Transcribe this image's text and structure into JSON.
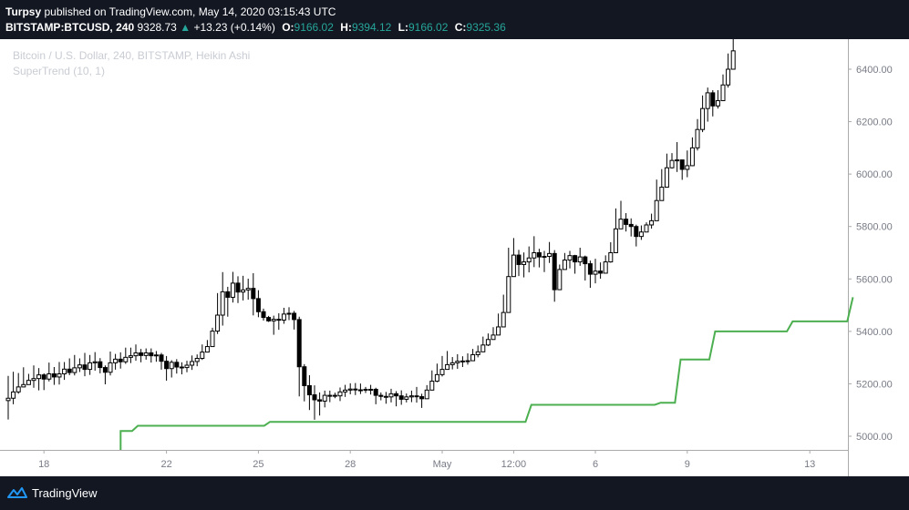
{
  "header": {
    "author": "Turpsy",
    "published_text": "published on TradingView.com, May 14, 2020 03:15:43 UTC",
    "symbol": "BITSTAMP:BTCUSD, 240",
    "last": "9328.73",
    "change": "+13.23 (+0.14%)",
    "o_label": "O:",
    "o_value": "9166.02",
    "h_label": "H:",
    "h_value": "9394.12",
    "l_label": "L:",
    "l_value": "9166.02",
    "c_label": "C:",
    "c_value": "9325.36"
  },
  "footer": {
    "brand": "TradingView"
  },
  "colors": {
    "background": "#131722",
    "candle_up": "#ffffff",
    "candle_down": "#000000",
    "supertrend": "#4caf50",
    "text_muted": "#787b86"
  },
  "chart_data": {
    "type": "candlestick",
    "title": "Bitcoin / U.S. Dollar, 240, BITSTAMP, Heikin Ashi",
    "indicator_label": "SuperTrend (10, 1)",
    "x_ticks": [
      {
        "label": "18",
        "i": 7
      },
      {
        "label": "22",
        "i": 31
      },
      {
        "label": "25",
        "i": 49
      },
      {
        "label": "28",
        "i": 67
      },
      {
        "label": "May",
        "i": 85
      },
      {
        "label": "12:00",
        "i": 99
      },
      {
        "label": "6",
        "i": 115
      },
      {
        "label": "9",
        "i": 133
      },
      {
        "label": "13",
        "i": 157
      }
    ],
    "y_ticks": [
      5000,
      5200,
      5400,
      5600,
      5800,
      6000,
      6200,
      6400
    ],
    "ylim": [
      4950,
      6550
    ],
    "candles": [
      [
        5136,
        5145,
        5230,
        5064
      ],
      [
        5145,
        5169,
        5246,
        5122
      ],
      [
        5169,
        5188,
        5241,
        5162
      ],
      [
        5188,
        5197,
        5263,
        5187
      ],
      [
        5197,
        5213,
        5238,
        5198
      ],
      [
        5213,
        5220,
        5270,
        5185
      ],
      [
        5220,
        5234,
        5260,
        5175
      ],
      [
        5234,
        5218,
        5240,
        5176
      ],
      [
        5218,
        5238,
        5281,
        5209
      ],
      [
        5238,
        5226,
        5264,
        5196
      ],
      [
        5226,
        5238,
        5283,
        5197
      ],
      [
        5238,
        5256,
        5283,
        5215
      ],
      [
        5256,
        5243,
        5297,
        5233
      ],
      [
        5243,
        5261,
        5310,
        5232
      ],
      [
        5261,
        5272,
        5297,
        5245
      ],
      [
        5272,
        5255,
        5318,
        5229
      ],
      [
        5255,
        5280,
        5310,
        5234
      ],
      [
        5280,
        5284,
        5321,
        5250
      ],
      [
        5284,
        5262,
        5298,
        5240
      ],
      [
        5262,
        5244,
        5270,
        5198
      ],
      [
        5244,
        5280,
        5323,
        5232
      ],
      [
        5280,
        5294,
        5314,
        5254
      ],
      [
        5294,
        5284,
        5320,
        5258
      ],
      [
        5284,
        5301,
        5338,
        5276
      ],
      [
        5301,
        5307,
        5338,
        5279
      ],
      [
        5307,
        5318,
        5350,
        5288
      ],
      [
        5318,
        5308,
        5333,
        5282
      ],
      [
        5308,
        5318,
        5335,
        5292
      ],
      [
        5318,
        5307,
        5335,
        5281
      ],
      [
        5307,
        5310,
        5325,
        5284
      ],
      [
        5310,
        5286,
        5318,
        5254
      ],
      [
        5286,
        5258,
        5306,
        5212
      ],
      [
        5258,
        5282,
        5290,
        5224
      ],
      [
        5282,
        5264,
        5294,
        5239
      ],
      [
        5264,
        5262,
        5282,
        5236
      ],
      [
        5262,
        5271,
        5288,
        5244
      ],
      [
        5271,
        5285,
        5308,
        5253
      ],
      [
        5285,
        5297,
        5312,
        5267
      ],
      [
        5297,
        5321,
        5350,
        5291
      ],
      [
        5321,
        5342,
        5367,
        5321
      ],
      [
        5342,
        5401,
        5414,
        5359
      ],
      [
        5401,
        5462,
        5546,
        5390
      ],
      [
        5462,
        5551,
        5626,
        5422
      ],
      [
        5551,
        5530,
        5570,
        5456
      ],
      [
        5530,
        5584,
        5627,
        5510
      ],
      [
        5584,
        5550,
        5610,
        5508
      ],
      [
        5550,
        5558,
        5612,
        5518
      ],
      [
        5558,
        5564,
        5601,
        5521
      ],
      [
        5564,
        5525,
        5622,
        5461
      ],
      [
        5525,
        5475,
        5557,
        5454
      ],
      [
        5475,
        5453,
        5487,
        5441
      ],
      [
        5453,
        5440,
        5459,
        5436
      ],
      [
        5440,
        5446,
        5460,
        5387
      ],
      [
        5446,
        5443,
        5469,
        5406
      ],
      [
        5443,
        5466,
        5490,
        5429
      ],
      [
        5466,
        5469,
        5492,
        5443
      ],
      [
        5469,
        5445,
        5478,
        5407
      ],
      [
        5445,
        5265,
        5456,
        5152
      ],
      [
        5265,
        5193,
        5275,
        5133
      ],
      [
        5193,
        5158,
        5233,
        5100
      ],
      [
        5158,
        5139,
        5194,
        5063
      ],
      [
        5139,
        5134,
        5167,
        5079
      ],
      [
        5134,
        5156,
        5174,
        5110
      ],
      [
        5156,
        5156,
        5174,
        5130
      ],
      [
        5156,
        5154,
        5166,
        5145
      ],
      [
        5154,
        5169,
        5186,
        5134
      ],
      [
        5169,
        5176,
        5196,
        5150
      ],
      [
        5176,
        5180,
        5202,
        5160
      ],
      [
        5180,
        5177,
        5203,
        5157
      ],
      [
        5177,
        5177,
        5201,
        5161
      ],
      [
        5177,
        5179,
        5188,
        5165
      ],
      [
        5179,
        5179,
        5196,
        5159
      ],
      [
        5179,
        5156,
        5185,
        5122
      ],
      [
        5156,
        5152,
        5167,
        5137
      ],
      [
        5152,
        5150,
        5169,
        5124
      ],
      [
        5150,
        5162,
        5181,
        5129
      ],
      [
        5162,
        5154,
        5172,
        5114
      ],
      [
        5154,
        5141,
        5175,
        5120
      ],
      [
        5141,
        5150,
        5163,
        5129
      ],
      [
        5150,
        5154,
        5174,
        5130
      ],
      [
        5154,
        5151,
        5188,
        5128
      ],
      [
        5151,
        5143,
        5162,
        5108
      ],
      [
        5143,
        5176,
        5195,
        5151
      ],
      [
        5176,
        5210,
        5251,
        5178
      ],
      [
        5210,
        5235,
        5277,
        5206
      ],
      [
        5235,
        5255,
        5306,
        5228
      ],
      [
        5255,
        5273,
        5325,
        5257
      ],
      [
        5273,
        5280,
        5302,
        5255
      ],
      [
        5280,
        5286,
        5313,
        5257
      ],
      [
        5286,
        5287,
        5305,
        5264
      ],
      [
        5287,
        5288,
        5316,
        5273
      ],
      [
        5288,
        5311,
        5333,
        5291
      ],
      [
        5311,
        5322,
        5346,
        5301
      ],
      [
        5322,
        5348,
        5380,
        5326
      ],
      [
        5348,
        5369,
        5392,
        5344
      ],
      [
        5369,
        5386,
        5416,
        5370
      ],
      [
        5386,
        5417,
        5468,
        5403
      ],
      [
        5417,
        5472,
        5540,
        5432
      ],
      [
        5472,
        5609,
        5719,
        5498
      ],
      [
        5609,
        5691,
        5756,
        5622
      ],
      [
        5691,
        5655,
        5711,
        5611
      ],
      [
        5655,
        5665,
        5701,
        5606
      ],
      [
        5665,
        5680,
        5724,
        5625
      ],
      [
        5680,
        5700,
        5763,
        5645
      ],
      [
        5700,
        5684,
        5715,
        5644
      ],
      [
        5684,
        5686,
        5707,
        5626
      ],
      [
        5686,
        5697,
        5741,
        5661
      ],
      [
        5697,
        5559,
        5710,
        5513
      ],
      [
        5559,
        5636,
        5655,
        5578
      ],
      [
        5636,
        5672,
        5699,
        5640
      ],
      [
        5672,
        5689,
        5707,
        5640
      ],
      [
        5689,
        5665,
        5692,
        5620
      ],
      [
        5665,
        5684,
        5719,
        5650
      ],
      [
        5684,
        5658,
        5689,
        5594
      ],
      [
        5658,
        5618,
        5670,
        5566
      ],
      [
        5618,
        5630,
        5677,
        5583
      ],
      [
        5630,
        5622,
        5663,
        5601
      ],
      [
        5622,
        5665,
        5690,
        5627
      ],
      [
        5665,
        5700,
        5740,
        5662
      ],
      [
        5700,
        5791,
        5869,
        5734
      ],
      [
        5791,
        5828,
        5898,
        5800
      ],
      [
        5828,
        5808,
        5851,
        5781
      ],
      [
        5808,
        5800,
        5831,
        5762
      ],
      [
        5800,
        5762,
        5807,
        5724
      ],
      [
        5762,
        5779,
        5804,
        5749
      ],
      [
        5779,
        5806,
        5816,
        5785
      ],
      [
        5806,
        5822,
        5849,
        5792
      ],
      [
        5822,
        5899,
        5979,
        5835
      ],
      [
        5899,
        5950,
        6019,
        5924
      ],
      [
        5950,
        6024,
        6078,
        5968
      ],
      [
        6024,
        6052,
        6080,
        6021
      ],
      [
        6052,
        6054,
        6122,
        6008
      ],
      [
        6054,
        6018,
        6040,
        5978
      ],
      [
        6018,
        6032,
        6090,
        5988
      ],
      [
        6032,
        6100,
        6140,
        6030
      ],
      [
        6100,
        6170,
        6210,
        6090
      ],
      [
        6170,
        6250,
        6300,
        6160
      ],
      [
        6250,
        6310,
        6330,
        6200
      ],
      [
        6310,
        6260,
        6320,
        6220
      ],
      [
        6260,
        6280,
        6320,
        6250
      ],
      [
        6280,
        6340,
        6380,
        6290
      ],
      [
        6340,
        6400,
        6460,
        6330
      ],
      [
        6400,
        6470,
        6550,
        6420
      ]
    ],
    "supertrend": [
      {
        "i": 42,
        "v": 4925
      },
      {
        "i": 42,
        "v": 5020
      },
      {
        "i": 46,
        "v": 5020
      },
      {
        "i": 48,
        "v": 5040
      },
      {
        "i": 92,
        "v": 5040
      },
      {
        "i": 94,
        "v": 5055
      },
      {
        "i": 183,
        "v": 5055
      },
      {
        "i": 185,
        "v": 5120
      },
      {
        "i": 228,
        "v": 5120
      },
      {
        "i": 230,
        "v": 5128
      },
      {
        "i": 235,
        "v": 5128
      },
      {
        "i": 237,
        "v": 5293
      },
      {
        "i": 247,
        "v": 5293
      },
      {
        "i": 249,
        "v": 5400
      },
      {
        "i": 274,
        "v": 5400
      },
      {
        "i": 276,
        "v": 5438
      },
      {
        "i": 295,
        "v": 5438
      },
      {
        "i": 297,
        "v": 5530
      }
    ]
  }
}
